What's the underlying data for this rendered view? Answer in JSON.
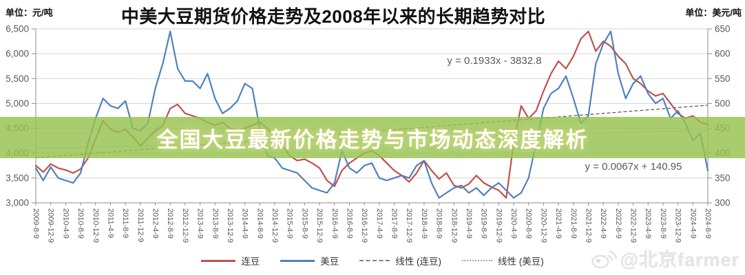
{
  "header": {
    "title": "中美大豆期货价格走势及2008年以来的长期趋势对比",
    "unit_left": "单位：元/吨",
    "unit_right": "单位：美元/吨"
  },
  "banner": {
    "text": "全国大豆最新价格走势与市场动态深度解析"
  },
  "watermark": {
    "icon": "weibo-icon",
    "text": "@北京farmer"
  },
  "legend": {
    "items": [
      {
        "label": "连豆",
        "style": "solid",
        "color": "#C0504D"
      },
      {
        "label": "美豆",
        "style": "solid",
        "color": "#4F81BD"
      },
      {
        "label": "线性 (连豆)",
        "style": "dashed",
        "color": "#808080"
      },
      {
        "label": "线性 (美豆)",
        "style": "dotted",
        "color": "#A6A6A6"
      }
    ]
  },
  "colors": {
    "liandou": "#C0504D",
    "meidou": "#4F81BD",
    "banner": "rgba(150,194,78,0.82)",
    "grid": "#D3D3D3",
    "axis": "#8C8C8C",
    "tick_text": "#595959"
  },
  "chart_data": {
    "type": "line",
    "title": "中美大豆期货价格走势及2008年以来的长期趋势对比",
    "grid": true,
    "legend_position": "bottom",
    "y_left": {
      "unit": "元/吨",
      "min": 3000,
      "max": 6500,
      "ticks": [
        "6,500",
        "6,000",
        "5,500",
        "5,000",
        "4,500",
        "4,000",
        "3,500",
        "3,000"
      ]
    },
    "y_right": {
      "unit": "美元/吨",
      "min": 300,
      "max": 650,
      "ticks": [
        "650",
        "600",
        "550",
        "500",
        "450",
        "400",
        "350",
        "300"
      ]
    },
    "x_ticks": [
      "2009-8-9",
      "2009-12-9",
      "2010-4-9",
      "2010-8-9",
      "2010-12-9",
      "2011-4-9",
      "2011-8-9",
      "2011-12-9",
      "2012-4-9",
      "2012-8-9",
      "2012-12-9",
      "2013-4-9",
      "2013-8-9",
      "2013-12-9",
      "2014-4-9",
      "2014-8-9",
      "2014-12-9",
      "2015-4-9",
      "2015-8-9",
      "2015-12-9",
      "2016-4-9",
      "2016-8-9",
      "2016-12-9",
      "2017-4-9",
      "2017-8-9",
      "2017-12-9",
      "2018-4-9",
      "2018-8-9",
      "2018-12-9",
      "2019-4-9",
      "2019-8-9",
      "2019-12-9",
      "2020-4-9",
      "2020-8-9",
      "2020-12-9",
      "2021-4-9",
      "2021-8-9",
      "2021-12-9",
      "2022-4-9",
      "2022-8-9",
      "2022-12-9",
      "2023-4-9",
      "2023-8-9",
      "2023-12-9",
      "2024-4-9",
      "2024-8-9"
    ],
    "sampling_note": "series sampled bimonthly from 2009-8-9 to 2024-8-9",
    "series": [
      {
        "name": "连豆",
        "key": "liandou",
        "axis": "left",
        "color": "#C0504D",
        "values": [
          3750,
          3620,
          3780,
          3700,
          3660,
          3600,
          3680,
          3900,
          4280,
          4650,
          4480,
          4420,
          4480,
          4320,
          4150,
          4300,
          4450,
          4550,
          4900,
          4980,
          4800,
          4750,
          4700,
          4620,
          4560,
          4620,
          4500,
          4460,
          4500,
          4560,
          4620,
          4500,
          4350,
          4150,
          3950,
          3850,
          3880,
          3800,
          3700,
          3450,
          3330,
          3650,
          3800,
          3900,
          4000,
          4050,
          3950,
          3800,
          3650,
          3550,
          3420,
          3600,
          3850,
          3650,
          3480,
          3600,
          3350,
          3300,
          3380,
          3550,
          3400,
          3320,
          3250,
          3100,
          4200,
          4950,
          4700,
          4850,
          5250,
          5600,
          5850,
          5700,
          5950,
          6300,
          6450,
          6050,
          6250,
          6150,
          5950,
          5800,
          5500,
          5400,
          5250,
          5150,
          5200,
          5000,
          4800,
          4700,
          4750,
          4620,
          4580
        ]
      },
      {
        "name": "美豆",
        "key": "meidou",
        "axis": "right",
        "color": "#4F81BD",
        "values": [
          370,
          345,
          372,
          350,
          345,
          340,
          360,
          420,
          470,
          510,
          495,
          490,
          505,
          450,
          445,
          460,
          530,
          580,
          645,
          570,
          545,
          545,
          530,
          560,
          510,
          480,
          490,
          505,
          540,
          530,
          450,
          395,
          390,
          370,
          365,
          360,
          345,
          330,
          325,
          320,
          340,
          405,
          370,
          360,
          375,
          380,
          350,
          345,
          350,
          355,
          350,
          375,
          385,
          340,
          310,
          320,
          330,
          335,
          320,
          330,
          315,
          330,
          340,
          325,
          310,
          320,
          350,
          420,
          490,
          520,
          530,
          555,
          510,
          460,
          475,
          580,
          620,
          645,
          560,
          510,
          540,
          555,
          520,
          500,
          510,
          470,
          485,
          460,
          425,
          440,
          365
        ]
      }
    ],
    "trendlines": [
      {
        "name": "线性 (连豆)",
        "key": "trend-liandou",
        "axis": "left",
        "start": 3906,
        "end": 4964,
        "equation": "y = 0.1933x  - 3832.8",
        "color": "#595959",
        "dash": "5 3"
      },
      {
        "name": "线性 (美豆)",
        "key": "trend-meidou",
        "axis": "right",
        "start": 409,
        "end": 446,
        "equation": "y = 0.0067x  +  140.95",
        "color": "#9A9A9A",
        "dash": "2 2"
      }
    ]
  }
}
